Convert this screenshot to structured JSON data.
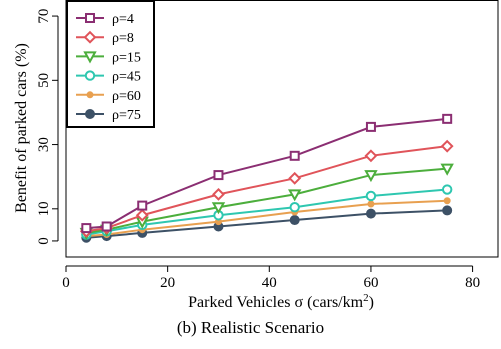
{
  "chart_data": {
    "type": "line",
    "xlabel": "Parked Vehicles σ (cars/km",
    "xlabel_sup": "2",
    "xlabel_close": ")",
    "ylabel": "Benefit of parked cars (%)",
    "xlim": [
      0,
      85
    ],
    "ylim": [
      -5,
      75
    ],
    "xticks": [
      0,
      20,
      40,
      60,
      80
    ],
    "yticks": [
      0,
      10,
      30,
      50,
      70
    ],
    "legend_position": "top-left",
    "x": [
      4,
      8,
      15,
      30,
      45,
      60,
      75
    ],
    "series": [
      {
        "name": "ρ=4",
        "color": "#8b2e72",
        "marker": "square",
        "values": [
          4.0,
          4.5,
          11.0,
          20.5,
          26.5,
          35.5,
          38.0
        ]
      },
      {
        "name": "ρ=8",
        "color": "#e0545a",
        "marker": "diamond",
        "values": [
          3.0,
          4.0,
          8.0,
          14.5,
          19.5,
          26.5,
          29.5
        ]
      },
      {
        "name": "ρ=15",
        "color": "#4cae3c",
        "marker": "triangle",
        "values": [
          2.5,
          3.5,
          6.0,
          10.5,
          14.5,
          20.5,
          22.5
        ]
      },
      {
        "name": "ρ=45",
        "color": "#2ec7b0",
        "marker": "circle",
        "values": [
          2.0,
          3.0,
          5.0,
          8.0,
          10.5,
          14.0,
          16.0
        ]
      },
      {
        "name": "ρ=60",
        "color": "#e8a050",
        "marker": "dot-small",
        "values": [
          1.5,
          2.0,
          3.5,
          6.0,
          9.0,
          11.5,
          12.5
        ]
      },
      {
        "name": "ρ=75",
        "color": "#3d5166",
        "marker": "dot",
        "values": [
          1.0,
          1.5,
          2.5,
          4.5,
          6.5,
          8.5,
          9.5
        ]
      }
    ]
  },
  "caption": "(b) Realistic Scenario"
}
